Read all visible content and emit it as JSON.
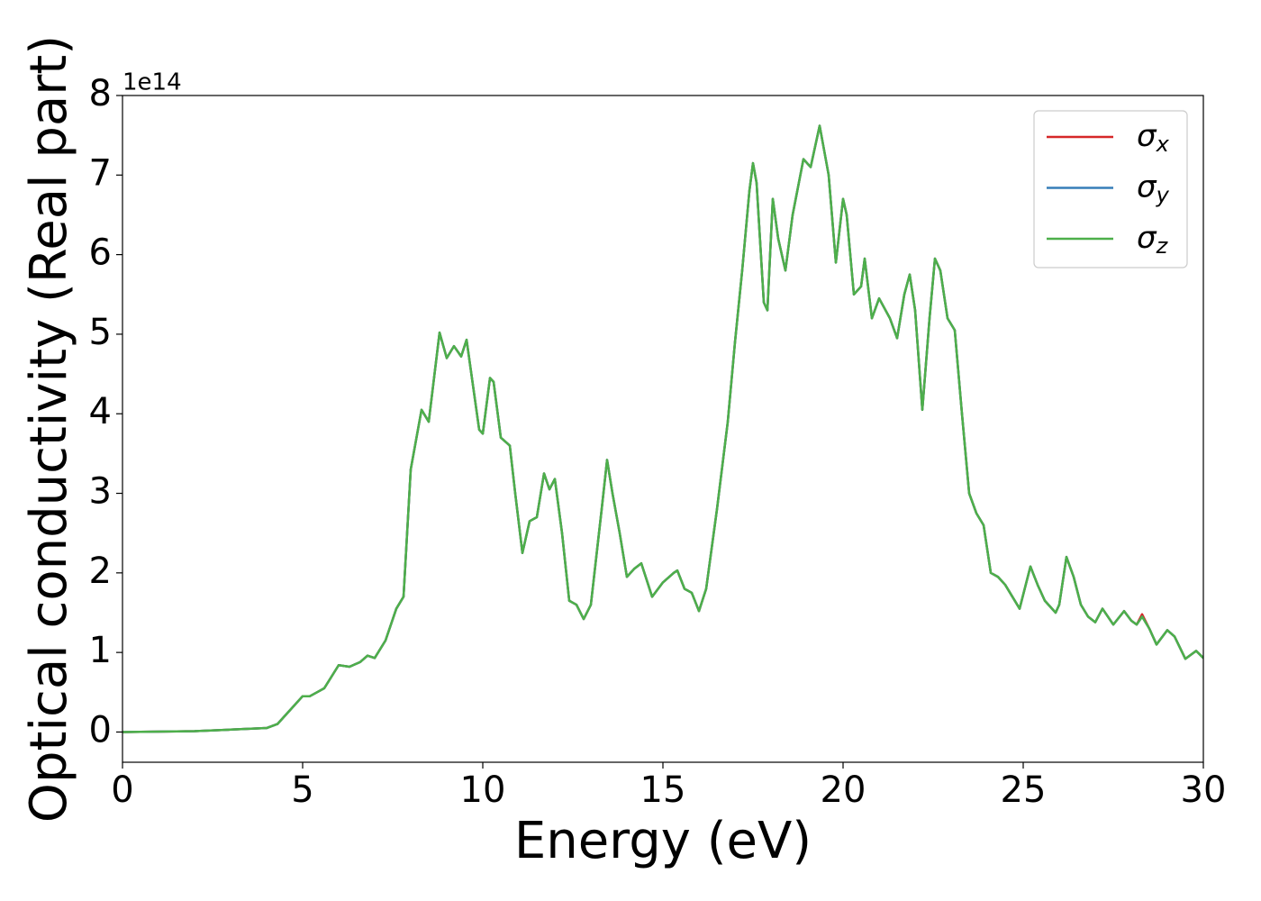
{
  "chart_data": {
    "type": "line",
    "xlabel": "Energy (eV)",
    "ylabel": "Optical conductivity (Real part)",
    "y_offset_label": "1e14",
    "x": [
      0,
      2,
      3,
      4,
      4.3,
      4.6,
      5,
      5.2,
      5.4,
      5.6,
      6,
      6.3,
      6.6,
      6.8,
      7,
      7.3,
      7.6,
      7.8,
      8,
      8.3,
      8.5,
      8.8,
      9,
      9.2,
      9.4,
      9.55,
      9.9,
      10,
      10.2,
      10.3,
      10.5,
      10.75,
      10.9,
      11.1,
      11.3,
      11.5,
      11.7,
      11.85,
      12,
      12.2,
      12.4,
      12.6,
      12.8,
      13,
      13.3,
      13.45,
      13.6,
      13.8,
      14,
      14.2,
      14.4,
      14.7,
      15,
      15.3,
      15.4,
      15.6,
      15.8,
      16,
      16.2,
      16.5,
      16.8,
      17,
      17.2,
      17.4,
      17.5,
      17.6,
      17.8,
      17.9,
      18.05,
      18.2,
      18.4,
      18.6,
      18.9,
      19.1,
      19.35,
      19.6,
      19.8,
      20,
      20.1,
      20.3,
      20.5,
      20.6,
      20.8,
      21,
      21.3,
      21.5,
      21.7,
      21.85,
      22,
      22.2,
      22.4,
      22.55,
      22.7,
      22.9,
      23.1,
      23.3,
      23.5,
      23.7,
      23.9,
      24.1,
      24.3,
      24.5,
      24.9,
      25.2,
      25.4,
      25.6,
      25.9,
      26,
      26.2,
      26.4,
      26.6,
      26.8,
      27,
      27.2,
      27.5,
      27.8,
      28,
      28.15,
      28.3,
      28.5,
      28.7,
      29,
      29.2,
      29.5,
      29.8,
      30
    ],
    "series": [
      {
        "name": "σx",
        "color": "#d62728",
        "values": [
          0,
          0.01,
          0.03,
          0.05,
          0.1,
          0.25,
          0.45,
          0.45,
          0.5,
          0.55,
          0.84,
          0.82,
          0.88,
          0.96,
          0.93,
          1.15,
          1.55,
          1.7,
          3.3,
          4.05,
          3.9,
          5.02,
          4.7,
          4.85,
          4.72,
          4.93,
          3.8,
          3.75,
          4.45,
          4.4,
          3.7,
          3.6,
          3.0,
          2.25,
          2.65,
          2.7,
          3.25,
          3.05,
          3.18,
          2.5,
          1.65,
          1.6,
          1.42,
          1.6,
          2.8,
          3.42,
          3.0,
          2.5,
          1.95,
          2.05,
          2.12,
          1.7,
          1.88,
          2.0,
          2.03,
          1.8,
          1.75,
          1.52,
          1.8,
          2.8,
          3.9,
          4.9,
          5.8,
          6.8,
          7.15,
          6.9,
          5.4,
          5.3,
          6.7,
          6.2,
          5.8,
          6.5,
          7.2,
          7.1,
          7.62,
          7.0,
          5.9,
          6.7,
          6.5,
          5.5,
          5.6,
          5.95,
          5.2,
          5.45,
          5.2,
          4.95,
          5.5,
          5.75,
          5.3,
          4.05,
          5.2,
          5.95,
          5.8,
          5.2,
          5.05,
          4.0,
          3.0,
          2.75,
          2.6,
          2.0,
          1.95,
          1.85,
          1.55,
          2.08,
          1.85,
          1.65,
          1.5,
          1.6,
          2.2,
          1.95,
          1.6,
          1.45,
          1.38,
          1.55,
          1.35,
          1.52,
          1.4,
          1.35,
          1.48,
          1.3,
          1.1,
          1.28,
          1.2,
          0.92,
          1.02,
          0.93
        ]
      },
      {
        "name": "σy",
        "color": "#377eb8",
        "values": [
          0,
          0.01,
          0.03,
          0.05,
          0.1,
          0.25,
          0.45,
          0.45,
          0.5,
          0.55,
          0.84,
          0.82,
          0.88,
          0.96,
          0.93,
          1.15,
          1.55,
          1.7,
          3.3,
          4.05,
          3.9,
          5.02,
          4.7,
          4.85,
          4.72,
          4.93,
          3.8,
          3.75,
          4.45,
          4.4,
          3.7,
          3.6,
          3.0,
          2.25,
          2.65,
          2.7,
          3.25,
          3.05,
          3.18,
          2.5,
          1.65,
          1.6,
          1.42,
          1.6,
          2.8,
          3.42,
          3.0,
          2.5,
          1.95,
          2.05,
          2.12,
          1.7,
          1.88,
          2.0,
          2.03,
          1.8,
          1.75,
          1.52,
          1.8,
          2.8,
          3.9,
          4.9,
          5.8,
          6.8,
          7.15,
          6.9,
          5.4,
          5.3,
          6.7,
          6.2,
          5.8,
          6.5,
          7.2,
          7.1,
          7.62,
          7.0,
          5.9,
          6.7,
          6.5,
          5.5,
          5.6,
          5.95,
          5.2,
          5.45,
          5.2,
          4.95,
          5.5,
          5.75,
          5.3,
          4.05,
          5.2,
          5.95,
          5.8,
          5.2,
          5.05,
          4.0,
          3.0,
          2.75,
          2.6,
          2.0,
          1.95,
          1.85,
          1.55,
          2.08,
          1.85,
          1.65,
          1.5,
          1.6,
          2.2,
          1.95,
          1.6,
          1.45,
          1.38,
          1.55,
          1.35,
          1.52,
          1.4,
          1.35,
          1.45,
          1.3,
          1.1,
          1.28,
          1.2,
          0.92,
          1.02,
          0.93
        ]
      },
      {
        "name": "σz",
        "color": "#4daf4a",
        "values": [
          0,
          0.01,
          0.03,
          0.05,
          0.1,
          0.25,
          0.45,
          0.45,
          0.5,
          0.55,
          0.84,
          0.82,
          0.88,
          0.96,
          0.93,
          1.15,
          1.55,
          1.7,
          3.3,
          4.05,
          3.9,
          5.02,
          4.7,
          4.85,
          4.72,
          4.93,
          3.8,
          3.75,
          4.45,
          4.4,
          3.7,
          3.6,
          3.0,
          2.25,
          2.65,
          2.7,
          3.25,
          3.05,
          3.18,
          2.5,
          1.65,
          1.6,
          1.42,
          1.6,
          2.8,
          3.42,
          3.0,
          2.5,
          1.95,
          2.05,
          2.12,
          1.7,
          1.88,
          2.0,
          2.03,
          1.8,
          1.75,
          1.52,
          1.8,
          2.8,
          3.9,
          4.9,
          5.8,
          6.8,
          7.15,
          6.9,
          5.4,
          5.3,
          6.7,
          6.2,
          5.8,
          6.5,
          7.2,
          7.1,
          7.62,
          7.0,
          5.9,
          6.7,
          6.5,
          5.5,
          5.6,
          5.95,
          5.2,
          5.45,
          5.2,
          4.95,
          5.5,
          5.75,
          5.3,
          4.05,
          5.2,
          5.95,
          5.8,
          5.2,
          5.05,
          4.0,
          3.0,
          2.75,
          2.6,
          2.0,
          1.95,
          1.85,
          1.55,
          2.08,
          1.85,
          1.65,
          1.5,
          1.6,
          2.2,
          1.95,
          1.6,
          1.45,
          1.38,
          1.55,
          1.35,
          1.52,
          1.4,
          1.35,
          1.45,
          1.3,
          1.1,
          1.28,
          1.2,
          0.92,
          1.02,
          0.93
        ]
      }
    ],
    "xlim": [
      0,
      30
    ],
    "xticks": [
      0,
      5,
      10,
      15,
      20,
      25,
      30
    ],
    "ylim": [
      -0.38,
      8
    ],
    "yticks": [
      0,
      1,
      2,
      3,
      4,
      5,
      6,
      7,
      8
    ],
    "grid": false,
    "legend": "upper right"
  }
}
